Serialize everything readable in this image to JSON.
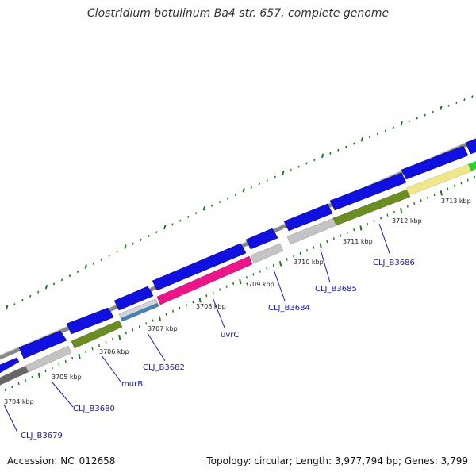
{
  "title": "Clostridium botulinum Ba4 str. 657, complete genome",
  "footer": {
    "accession": "Accession: NC_012658",
    "info": "Topology: circular; Length: 3,977,794 bp; Genes: 3,799"
  },
  "colors": {
    "backbone": "#8a8a8a",
    "forward_gene": "#1010e0",
    "tick": "#1a7a1a",
    "label": "#1a1aa8",
    "pink": "#ee1489",
    "olive": "#6b8e23",
    "silver": "#c0c0c0",
    "yellow": "#f0e68c",
    "green": "#32cd32",
    "steel": "#4682b4",
    "darkgray": "#666666"
  },
  "kbp_labels": [
    "3704 kbp",
    "3705 kbp",
    "3706 kbp",
    "3707 kbp",
    "3708 kbp",
    "3709 kbp",
    "3710 kbp",
    "3711 kbp",
    "3712 kbp",
    "3713 kbp"
  ],
  "gene_labels": [
    "CLJ_B3679",
    "CLJ_B3680",
    "murB",
    "CLJ_B3682",
    "uvrC",
    "CLJ_B3684",
    "CLJ_B3685",
    "CLJ_B3686"
  ]
}
